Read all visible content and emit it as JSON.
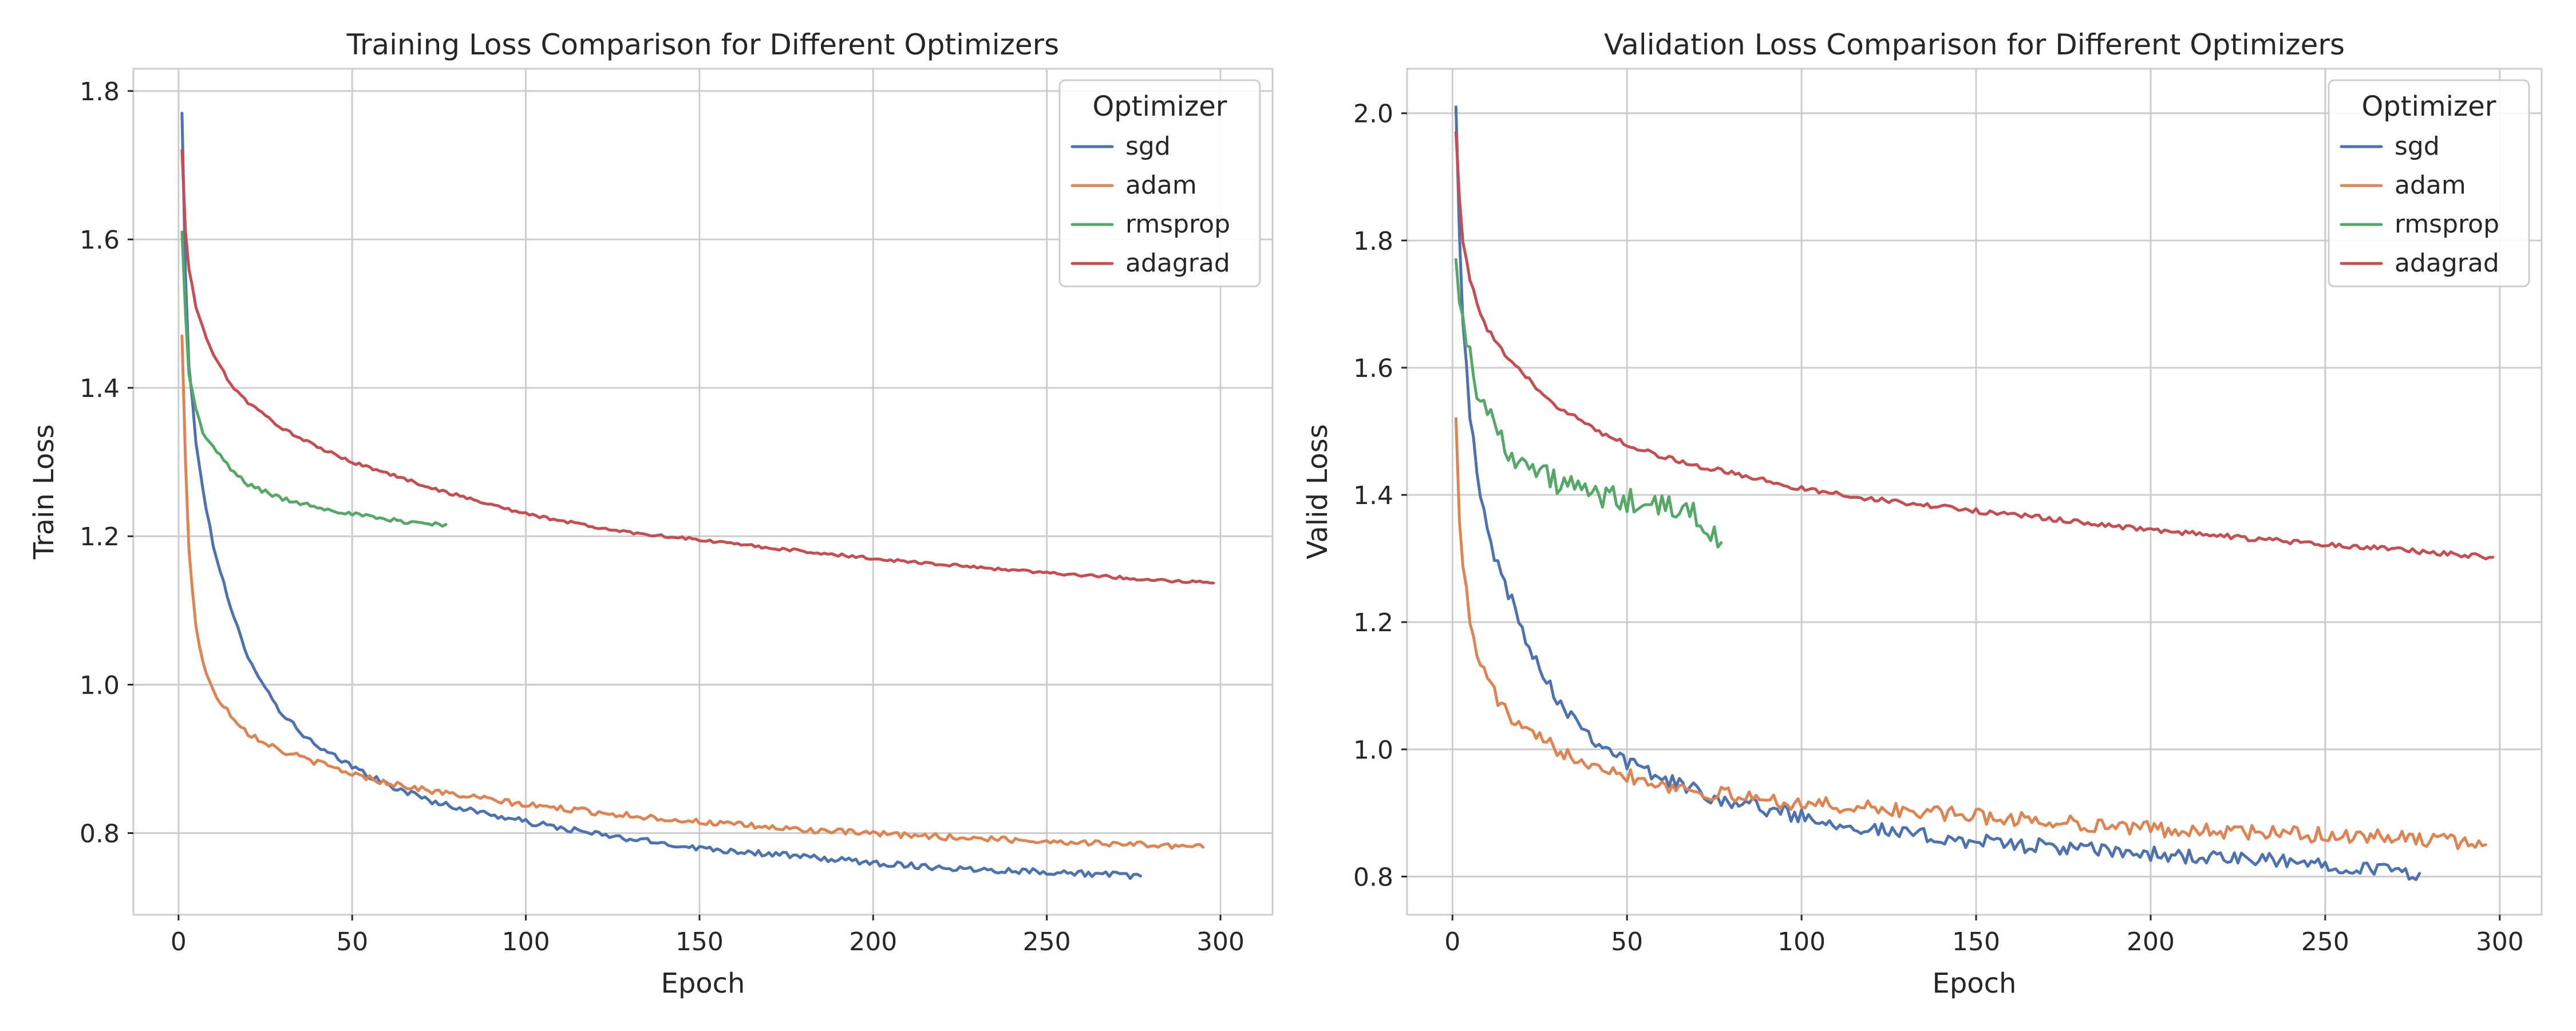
{
  "colors": {
    "sgd": "#4c72b0",
    "adam": "#dd8452",
    "rmsprop": "#55a868",
    "adagrad": "#c44e52"
  },
  "chart_data": [
    {
      "type": "line",
      "title": "Training Loss Comparison for Different Optimizers",
      "xlabel": "Epoch",
      "ylabel": "Train Loss",
      "xlim": [
        -13,
        315
      ],
      "ylim": [
        0.69,
        1.83
      ],
      "xticks": [
        0,
        50,
        100,
        150,
        200,
        250,
        300
      ],
      "yticks": [
        0.8,
        1.0,
        1.2,
        1.4,
        1.6,
        1.8
      ],
      "ytick_labels": [
        "0.8",
        "1.0",
        "1.2",
        "1.4",
        "1.6",
        "1.8"
      ],
      "grid": true,
      "legend_title": "Optimizer",
      "legend_position": "top-right",
      "series": [
        {
          "name": "sgd",
          "color_key": "sgd",
          "noise": 0.004,
          "x": [
            1,
            2,
            3,
            5,
            7,
            10,
            15,
            20,
            25,
            30,
            40,
            50,
            60,
            75,
            100,
            125,
            150,
            175,
            200,
            225,
            250,
            277
          ],
          "y": [
            1.77,
            1.55,
            1.43,
            1.33,
            1.26,
            1.19,
            1.1,
            1.04,
            0.995,
            0.96,
            0.915,
            0.89,
            0.865,
            0.84,
            0.815,
            0.795,
            0.78,
            0.77,
            0.76,
            0.752,
            0.748,
            0.742
          ]
        },
        {
          "name": "adam",
          "color_key": "adam",
          "noise": 0.004,
          "x": [
            1,
            2,
            3,
            5,
            7,
            10,
            15,
            20,
            30,
            40,
            50,
            60,
            75,
            100,
            125,
            150,
            175,
            200,
            225,
            250,
            275,
            295
          ],
          "y": [
            1.47,
            1.3,
            1.18,
            1.08,
            1.03,
            0.99,
            0.96,
            0.935,
            0.91,
            0.895,
            0.88,
            0.868,
            0.855,
            0.838,
            0.826,
            0.815,
            0.806,
            0.799,
            0.794,
            0.789,
            0.785,
            0.781
          ]
        },
        {
          "name": "rmsprop",
          "color_key": "rmsprop",
          "noise": 0.003,
          "x": [
            1,
            2,
            3,
            5,
            7,
            10,
            15,
            20,
            30,
            40,
            50,
            60,
            70,
            77
          ],
          "y": [
            1.61,
            1.5,
            1.42,
            1.37,
            1.34,
            1.32,
            1.29,
            1.27,
            1.25,
            1.24,
            1.23,
            1.222,
            1.218,
            1.216
          ]
        },
        {
          "name": "adagrad",
          "color_key": "adagrad",
          "noise": 0.002,
          "x": [
            1,
            2,
            3,
            5,
            7,
            10,
            15,
            20,
            30,
            40,
            50,
            60,
            75,
            100,
            125,
            150,
            175,
            200,
            225,
            250,
            275,
            298
          ],
          "y": [
            1.72,
            1.61,
            1.56,
            1.51,
            1.48,
            1.445,
            1.405,
            1.38,
            1.345,
            1.32,
            1.3,
            1.285,
            1.262,
            1.23,
            1.208,
            1.195,
            1.182,
            1.17,
            1.16,
            1.151,
            1.143,
            1.137
          ]
        }
      ]
    },
    {
      "type": "line",
      "title": "Validation Loss Comparison for Different Optimizers",
      "xlabel": "Epoch",
      "ylabel": "Valid Loss",
      "xlim": [
        -13,
        312
      ],
      "ylim": [
        0.74,
        2.07
      ],
      "xticks": [
        0,
        50,
        100,
        150,
        200,
        250,
        300
      ],
      "yticks": [
        0.8,
        1.0,
        1.2,
        1.4,
        1.6,
        1.8,
        2.0
      ],
      "ytick_labels": [
        "0.8",
        "1.0",
        "1.2",
        "1.4",
        "1.6",
        "1.8",
        "2.0"
      ],
      "grid": true,
      "legend_title": "Optimizer",
      "legend_position": "top-right",
      "series": [
        {
          "name": "sgd",
          "color_key": "sgd",
          "noise": 0.012,
          "x": [
            1,
            2,
            3,
            5,
            7,
            10,
            15,
            20,
            25,
            30,
            40,
            50,
            60,
            75,
            100,
            125,
            150,
            175,
            200,
            225,
            250,
            277
          ],
          "y": [
            2.01,
            1.82,
            1.68,
            1.53,
            1.43,
            1.34,
            1.26,
            1.19,
            1.13,
            1.08,
            1.02,
            0.98,
            0.955,
            0.925,
            0.895,
            0.87,
            0.855,
            0.845,
            0.835,
            0.827,
            0.82,
            0.805
          ]
        },
        {
          "name": "adam",
          "color_key": "adam",
          "noise": 0.012,
          "x": [
            1,
            2,
            3,
            5,
            7,
            10,
            15,
            20,
            30,
            40,
            50,
            60,
            75,
            100,
            125,
            150,
            175,
            200,
            225,
            250,
            275,
            296
          ],
          "y": [
            1.52,
            1.37,
            1.29,
            1.2,
            1.15,
            1.11,
            1.06,
            1.03,
            1.0,
            0.98,
            0.96,
            0.945,
            0.93,
            0.915,
            0.905,
            0.895,
            0.885,
            0.875,
            0.87,
            0.865,
            0.86,
            0.85
          ]
        },
        {
          "name": "rmsprop",
          "color_key": "rmsprop",
          "noise": 0.02,
          "x": [
            1,
            2,
            3,
            5,
            7,
            10,
            15,
            20,
            30,
            40,
            50,
            60,
            70,
            77
          ],
          "y": [
            1.77,
            1.72,
            1.67,
            1.62,
            1.57,
            1.53,
            1.48,
            1.45,
            1.42,
            1.4,
            1.39,
            1.38,
            1.37,
            1.325
          ]
        },
        {
          "name": "adagrad",
          "color_key": "adagrad",
          "noise": 0.004,
          "x": [
            1,
            2,
            3,
            5,
            7,
            10,
            15,
            20,
            30,
            40,
            50,
            60,
            75,
            100,
            125,
            150,
            175,
            200,
            225,
            250,
            275,
            298
          ],
          "y": [
            1.97,
            1.87,
            1.8,
            1.74,
            1.7,
            1.66,
            1.62,
            1.59,
            1.54,
            1.505,
            1.48,
            1.46,
            1.44,
            1.41,
            1.39,
            1.375,
            1.36,
            1.345,
            1.333,
            1.322,
            1.312,
            1.302
          ]
        }
      ]
    }
  ]
}
